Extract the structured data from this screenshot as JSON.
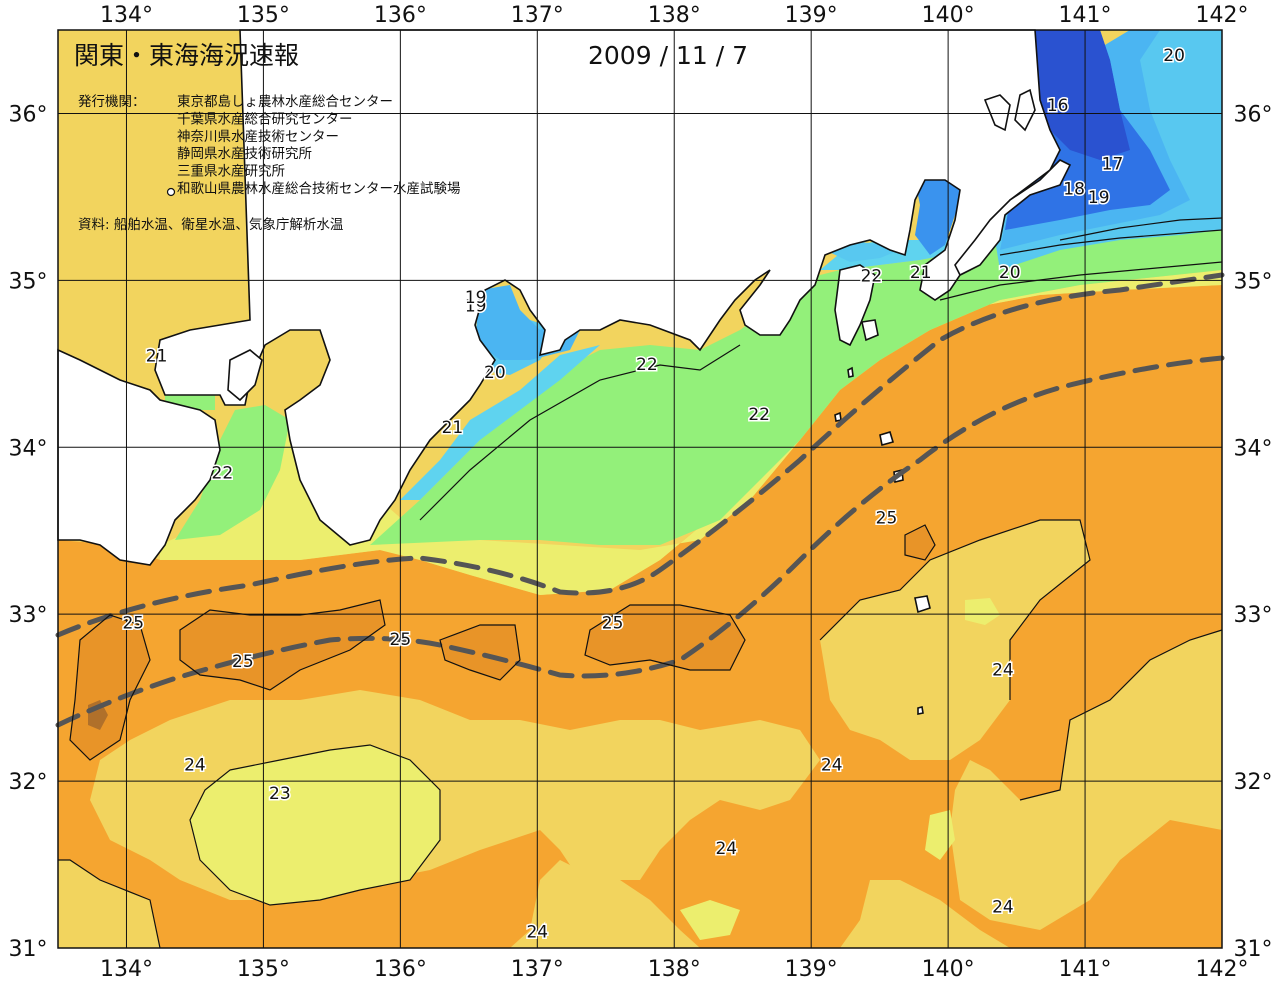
{
  "title": "関東・東海海況速報",
  "date": "2009 / 11 / 7",
  "issuer_label": "発行機関：",
  "issuers": [
    "東京都島しょ農林水産総合センター",
    "千葉県水産総合研究センター",
    "神奈川県水産技術センター",
    "静岡県水産技術研究所",
    "三重県水産研究所",
    "和歌山県農林水産総合技術センター水産試験場"
  ],
  "source": "資料: 船舶水温、衛星水温、気象庁解析水温",
  "map": {
    "lon_range": [
      133.5,
      142.0
    ],
    "lat_range": [
      31.0,
      36.5
    ],
    "lon_ticks": [
      "134°",
      "135°",
      "136°",
      "137°",
      "138°",
      "139°",
      "140°",
      "141°",
      "142°"
    ],
    "lat_ticks": [
      "31°",
      "32°",
      "33°",
      "34°",
      "35°",
      "36°"
    ],
    "colors": {
      "t16": "#2a52d0",
      "t17": "#2f73e6",
      "t18": "#3a93ee",
      "t19": "#4bb5f2",
      "t20": "#58c8f0",
      "t21": "#5fd3ef",
      "t22": "#93f07a",
      "t23": "#ecee6e",
      "t24": "#f2d45e",
      "t25": "#f5a530",
      "t26": "#e89428",
      "land": "#ffffff",
      "kuroshio_axis": "#555555"
    },
    "contour_labels": [
      {
        "text": "16",
        "lon": 140.8,
        "lat": 36.05
      },
      {
        "text": "17",
        "lon": 141.2,
        "lat": 35.7
      },
      {
        "text": "18",
        "lon": 140.92,
        "lat": 35.55
      },
      {
        "text": "19",
        "lon": 141.1,
        "lat": 35.5
      },
      {
        "text": "20",
        "lon": 141.65,
        "lat": 36.35
      },
      {
        "text": "20",
        "lon": 140.45,
        "lat": 35.05
      },
      {
        "text": "21",
        "lon": 139.8,
        "lat": 35.05
      },
      {
        "text": "22",
        "lon": 139.44,
        "lat": 35.03
      },
      {
        "text": "19",
        "lon": 136.55,
        "lat": 34.85
      },
      {
        "text": "19",
        "lon": 136.55,
        "lat": 34.9
      },
      {
        "text": "20",
        "lon": 136.69,
        "lat": 34.45
      },
      {
        "text": "21",
        "lon": 136.38,
        "lat": 34.12
      },
      {
        "text": "21",
        "lon": 134.22,
        "lat": 34.55
      },
      {
        "text": "22",
        "lon": 134.7,
        "lat": 33.85
      },
      {
        "text": "22",
        "lon": 137.8,
        "lat": 34.5
      },
      {
        "text": "22",
        "lon": 138.62,
        "lat": 34.2
      },
      {
        "text": "25",
        "lon": 139.55,
        "lat": 33.58
      },
      {
        "text": "25",
        "lon": 134.05,
        "lat": 32.95
      },
      {
        "text": "25",
        "lon": 134.85,
        "lat": 32.72
      },
      {
        "text": "25",
        "lon": 136.0,
        "lat": 32.85
      },
      {
        "text": "25",
        "lon": 137.55,
        "lat": 32.95
      },
      {
        "text": "24",
        "lon": 140.4,
        "lat": 32.67
      },
      {
        "text": "24",
        "lon": 134.5,
        "lat": 32.1
      },
      {
        "text": "23",
        "lon": 135.12,
        "lat": 31.93
      },
      {
        "text": "24",
        "lon": 139.15,
        "lat": 32.1
      },
      {
        "text": "24",
        "lon": 138.38,
        "lat": 31.6
      },
      {
        "text": "24",
        "lon": 140.4,
        "lat": 31.25
      },
      {
        "text": "24",
        "lon": 137.0,
        "lat": 31.1
      }
    ]
  }
}
